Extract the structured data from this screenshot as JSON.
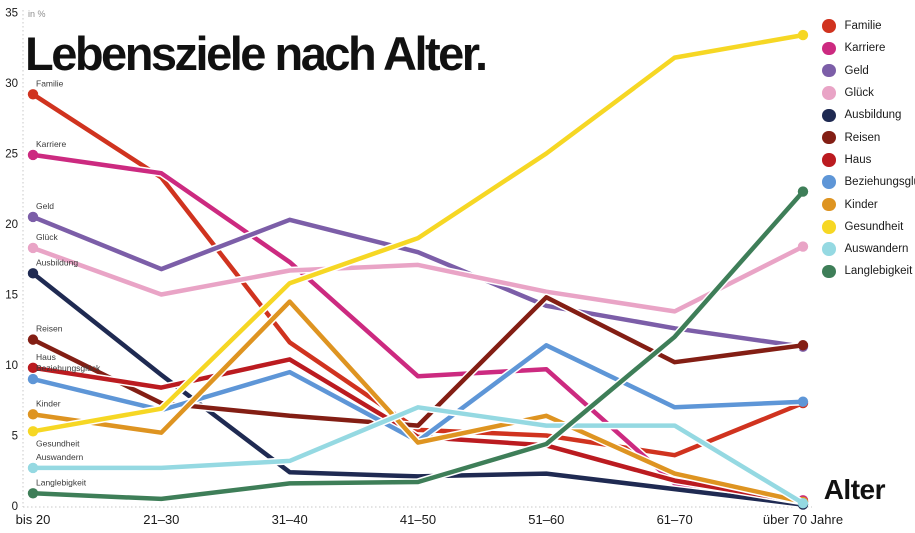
{
  "title": "Lebensziele nach Alter.",
  "axis": {
    "unit_label": "in %",
    "x_axis_title": "Alter",
    "y_ticks": [
      0,
      5,
      10,
      15,
      20,
      25,
      30,
      35
    ]
  },
  "chart_data": {
    "type": "line",
    "title": "Lebensziele nach Alter.",
    "xlabel": "Alter",
    "ylabel": "in %",
    "ylim": [
      0,
      35
    ],
    "grid": false,
    "legend_position": "top-right",
    "categories": [
      "bis 20",
      "21–30",
      "31–40",
      "41–50",
      "51–60",
      "61–70",
      "über 70 Jahre"
    ],
    "series": [
      {
        "name": "Familie",
        "color": "#d0331f",
        "values": [
          29.2,
          23.3,
          11.6,
          5.4,
          5.0,
          3.6,
          7.3
        ]
      },
      {
        "name": "Karriere",
        "color": "#cc2a80",
        "values": [
          24.9,
          23.6,
          17.3,
          9.2,
          9.7,
          1.6,
          0.4
        ]
      },
      {
        "name": "Geld",
        "color": "#7c5ea8",
        "values": [
          20.5,
          16.8,
          20.3,
          18.0,
          14.2,
          12.6,
          11.3
        ]
      },
      {
        "name": "Glück",
        "color": "#e9a4c6",
        "values": [
          18.3,
          15.0,
          16.7,
          17.1,
          15.2,
          13.8,
          18.4
        ]
      },
      {
        "name": "Ausbildung",
        "color": "#1f2a52",
        "values": [
          16.5,
          9.3,
          2.4,
          2.1,
          2.3,
          1.2,
          0.1
        ]
      },
      {
        "name": "Reisen",
        "color": "#831e14",
        "values": [
          11.8,
          7.3,
          6.4,
          5.7,
          14.8,
          10.2,
          11.4
        ]
      },
      {
        "name": "Haus",
        "color": "#bb1b20",
        "values": [
          9.8,
          8.4,
          10.4,
          4.9,
          4.3,
          1.8,
          0.3
        ]
      },
      {
        "name": "Beziehungsglück",
        "color": "#5e96d7",
        "values": [
          9.0,
          6.8,
          9.5,
          4.6,
          11.4,
          7.0,
          7.4
        ]
      },
      {
        "name": "Kinder",
        "color": "#de9421",
        "values": [
          6.5,
          5.2,
          14.5,
          4.5,
          6.4,
          2.3,
          0.3
        ]
      },
      {
        "name": "Gesundheit",
        "color": "#f6d724",
        "values": [
          5.3,
          6.9,
          15.8,
          19.0,
          25.0,
          31.8,
          33.4
        ],
        "label_below": true
      },
      {
        "name": "Auswandern",
        "color": "#95d9e2",
        "values": [
          2.7,
          2.7,
          3.2,
          7.0,
          5.7,
          5.7,
          0.2
        ]
      },
      {
        "name": "Langlebigkeit",
        "color": "#3e7e58",
        "values": [
          0.9,
          0.5,
          1.6,
          1.7,
          4.4,
          12.0,
          22.3
        ]
      }
    ]
  }
}
